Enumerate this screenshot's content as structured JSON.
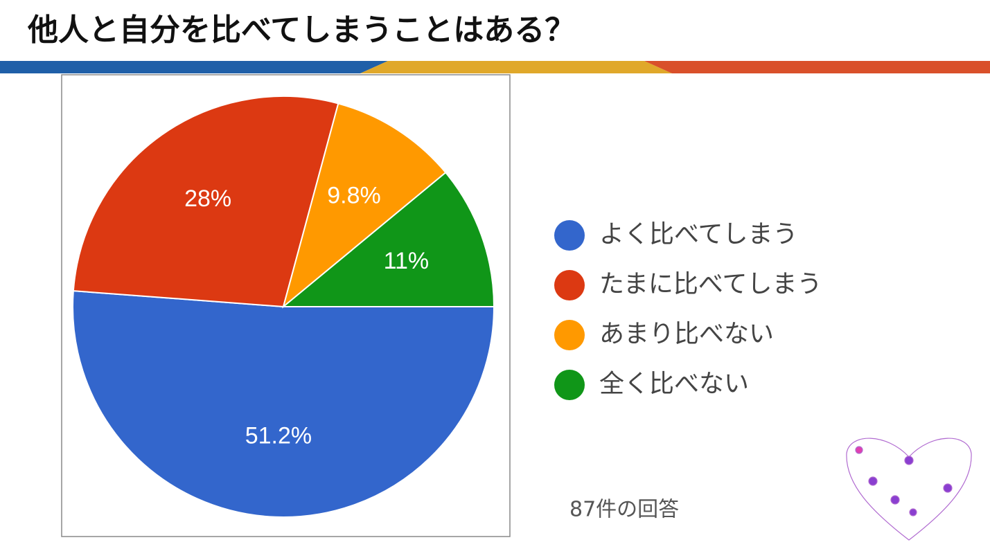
{
  "chart_data": {
    "type": "pie",
    "title": "他人と自分を比べてしまうことはある？",
    "categories": [
      "よく比べてしまう",
      "たまに比べてしまう",
      "あまり比べない",
      "全く比べない"
    ],
    "values": [
      51.2,
      28,
      9.8,
      11
    ],
    "value_labels": [
      "51.2%",
      "28%",
      "9.8%",
      "11%"
    ],
    "colors": [
      "#3366cc",
      "#dc3912",
      "#ff9900",
      "#109618"
    ],
    "annotation": "87件の回答"
  }
}
